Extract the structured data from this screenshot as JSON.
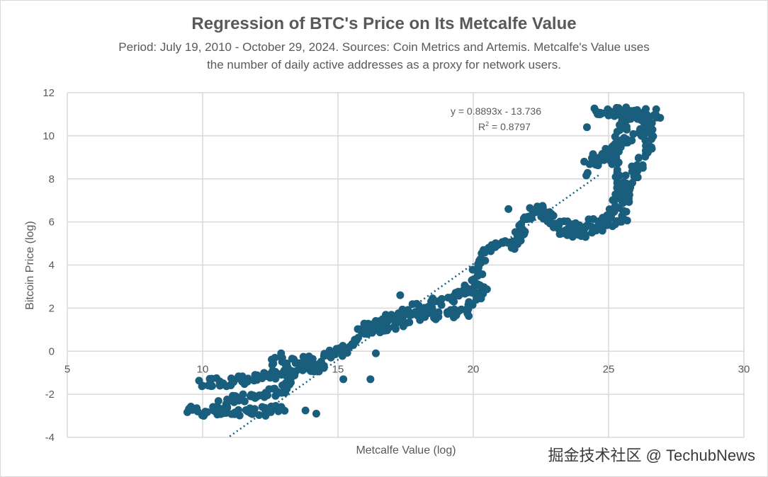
{
  "chart_data": {
    "type": "scatter",
    "title": "Regression of BTC's Price on Its Metcalfe Value",
    "subtitle_line1": "Period: July 19, 2010 - October 29, 2024. Sources: Coin Metrics and Artemis. Metcalfe's Value uses",
    "subtitle_line2": "the number of daily active addresses as a proxy for network users.",
    "xlabel": "Metcalfe Value (log)",
    "ylabel": "Bitcoin Price (log)",
    "xlim": [
      5,
      30
    ],
    "ylim": [
      -4,
      12
    ],
    "xticks": [
      5,
      10,
      15,
      20,
      25,
      30
    ],
    "yticks": [
      -4,
      -2,
      0,
      2,
      4,
      6,
      8,
      10,
      12
    ],
    "grid": true,
    "color": "#1a5e7e",
    "trendline": {
      "slope": 0.8893,
      "intercept": -13.736,
      "x_range": [
        11,
        24.7
      ],
      "equation": "y = 0.8893x - 13.736",
      "r2_label": "R",
      "r2_value": " = 0.8797"
    },
    "traces": [
      [
        [
          9.5,
          -2.7
        ],
        [
          10,
          -2.8
        ],
        [
          11,
          -2.8
        ],
        [
          12,
          -2.8
        ],
        [
          13,
          -2.75
        ]
      ],
      [
        [
          10,
          -1.5
        ],
        [
          10.5,
          -1.4
        ],
        [
          11,
          -1.4
        ],
        [
          12,
          -1.3
        ],
        [
          13,
          -1.0
        ],
        [
          14,
          -0.8
        ],
        [
          14.5,
          -0.7
        ]
      ],
      [
        [
          10.5,
          -2.5
        ],
        [
          11,
          -2.3
        ],
        [
          12,
          -2.1
        ],
        [
          13,
          -1.8
        ],
        [
          13.3,
          -1.2
        ]
      ],
      [
        [
          14.5,
          0
        ],
        [
          15,
          -0.1
        ],
        [
          15.5,
          0.2
        ],
        [
          16,
          0.8
        ],
        [
          16.5,
          1.3
        ],
        [
          17,
          1.6
        ],
        [
          18,
          2.0
        ],
        [
          19,
          2.4
        ],
        [
          19.7,
          2.8
        ],
        [
          20,
          3.2
        ],
        [
          20.3,
          4.2
        ],
        [
          20.6,
          4.8
        ],
        [
          21,
          4.9
        ],
        [
          21.5,
          5.0
        ],
        [
          21.8,
          5.6
        ],
        [
          22,
          6.3
        ],
        [
          22.5,
          6.7
        ],
        [
          22.8,
          6.2
        ],
        [
          23,
          6.0
        ],
        [
          24,
          5.8
        ],
        [
          24.5,
          6.0
        ],
        [
          25,
          6.2
        ],
        [
          25.5,
          7.5
        ],
        [
          25.2,
          9
        ],
        [
          25.5,
          10.5
        ],
        [
          26,
          11
        ],
        [
          26.5,
          10.5
        ],
        [
          26.5,
          9.5
        ],
        [
          25.8,
          8.0
        ],
        [
          25.5,
          6.5
        ],
        [
          25.6,
          6.0
        ]
      ],
      [
        [
          15.8,
          1.2
        ],
        [
          16.5,
          1.0
        ],
        [
          17,
          1.2
        ],
        [
          18,
          1.7
        ],
        [
          19,
          1.7
        ],
        [
          19.8,
          1.8
        ],
        [
          20.2,
          2.6
        ],
        [
          20.4,
          3.2
        ]
      ],
      [
        [
          24.3,
          8.3
        ],
        [
          24.6,
          9.0
        ],
        [
          25,
          9.2
        ],
        [
          26,
          10
        ],
        [
          26.5,
          10.8
        ],
        [
          26.8,
          11.0
        ],
        [
          25.5,
          11.1
        ],
        [
          24.6,
          11.1
        ],
        [
          25.8,
          11.1
        ]
      ],
      [
        [
          22.6,
          6.2
        ],
        [
          23.3,
          5.6
        ],
        [
          24,
          5.5
        ],
        [
          24.8,
          5.8
        ],
        [
          25.3,
          5.9
        ]
      ],
      [
        [
          12.5,
          -0.4
        ],
        [
          13.5,
          -0.5
        ],
        [
          14,
          -0.4
        ],
        [
          14.4,
          -0.6
        ]
      ]
    ],
    "outliers": [
      [
        15.2,
        -1.3
      ],
      [
        16.2,
        -1.3
      ],
      [
        14.2,
        -2.9
      ],
      [
        13.8,
        -2.75
      ],
      [
        24.2,
        10.4
      ],
      [
        24.1,
        8.8
      ],
      [
        10,
        -1.6
      ],
      [
        12.9,
        -0.1
      ],
      [
        16.4,
        -0.1
      ],
      [
        17.3,
        2.6
      ],
      [
        21.3,
        6.6
      ]
    ]
  },
  "watermark": "掘金技术社区 @ TechubNews"
}
